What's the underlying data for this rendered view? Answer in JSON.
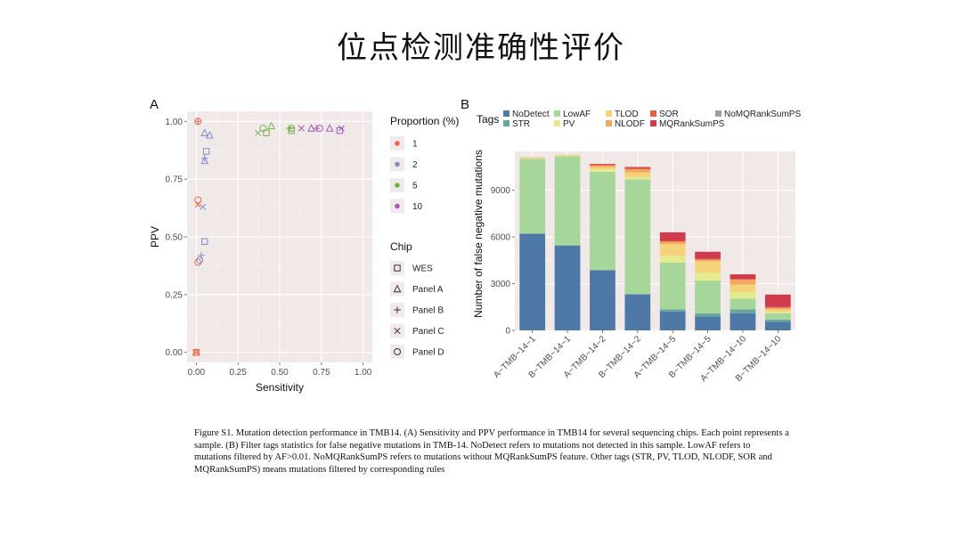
{
  "slide": {
    "title": "位点检测准确性评价",
    "caption": "Figure S1. Mutation detection performance in TMB14. (A) Sensitivity and PPV performance in TMB14 for several sequencing chips. Each point represents a sample. (B) Filter tags statistics for false negative mutations in TMB-14. NoDetect refers to mutations not detected in this sample. LowAF refers to mutations filtered by AF>0.01. NoMQRankSumPS refers to mutations without MQRankSumPS feature. Other tags (STR, PV, TLOD, NLODF, SOR and MQRankSumPS) means mutations filtered by corresponding rules"
  },
  "chart_data": [
    {
      "panel": "A",
      "type": "scatter",
      "xlabel": "Sensitivity",
      "ylabel": "PPV",
      "xlim": [
        0,
        1
      ],
      "ylim": [
        0,
        1
      ],
      "xticks": [
        "0.00",
        "0.25",
        "0.50",
        "0.75",
        "1.00"
      ],
      "yticks": [
        "0.00",
        "0.25",
        "0.50",
        "0.75",
        "1.00"
      ],
      "grid": true,
      "legend_position": "right",
      "color_legend": {
        "title": "Proportion (%)",
        "entries": [
          {
            "label": "1",
            "color": "#e8694a"
          },
          {
            "label": "2",
            "color": "#7f8fc9"
          },
          {
            "label": "5",
            "color": "#73b34a"
          },
          {
            "label": "10",
            "color": "#a05bb3"
          }
        ]
      },
      "shape_legend": {
        "title": "Chip",
        "entries": [
          {
            "label": "WES",
            "shape": "square"
          },
          {
            "label": "Panel A",
            "shape": "triangle"
          },
          {
            "label": "Panel B",
            "shape": "plus"
          },
          {
            "label": "Panel C",
            "shape": "cross"
          },
          {
            "label": "Panel D",
            "shape": "circle"
          }
        ]
      },
      "points": [
        {
          "x": 0.01,
          "y": 1.0,
          "proportion": "1",
          "chip": "Panel D"
        },
        {
          "x": 0.01,
          "y": 1.0,
          "proportion": "1",
          "chip": "Panel B"
        },
        {
          "x": 0.0,
          "y": 0.0,
          "proportion": "1",
          "chip": "WES"
        },
        {
          "x": 0.0,
          "y": 0.0,
          "proportion": "1",
          "chip": "Panel A"
        },
        {
          "x": 0.0,
          "y": 0.0,
          "proportion": "1",
          "chip": "Panel C"
        },
        {
          "x": 0.01,
          "y": 0.66,
          "proportion": "1",
          "chip": "Panel D"
        },
        {
          "x": 0.01,
          "y": 0.64,
          "proportion": "1",
          "chip": "Panel C"
        },
        {
          "x": 0.01,
          "y": 0.39,
          "proportion": "1",
          "chip": "Panel D"
        },
        {
          "x": 0.05,
          "y": 0.95,
          "proportion": "2",
          "chip": "Panel A"
        },
        {
          "x": 0.08,
          "y": 0.94,
          "proportion": "2",
          "chip": "Panel A"
        },
        {
          "x": 0.06,
          "y": 0.87,
          "proportion": "2",
          "chip": "WES"
        },
        {
          "x": 0.05,
          "y": 0.84,
          "proportion": "2",
          "chip": "Panel B"
        },
        {
          "x": 0.05,
          "y": 0.83,
          "proportion": "2",
          "chip": "Panel A"
        },
        {
          "x": 0.04,
          "y": 0.63,
          "proportion": "2",
          "chip": "Panel C"
        },
        {
          "x": 0.05,
          "y": 0.48,
          "proportion": "2",
          "chip": "WES"
        },
        {
          "x": 0.03,
          "y": 0.42,
          "proportion": "2",
          "chip": "Panel B"
        },
        {
          "x": 0.02,
          "y": 0.4,
          "proportion": "2",
          "chip": "Panel D"
        },
        {
          "x": 0.37,
          "y": 0.95,
          "proportion": "5",
          "chip": "Panel C"
        },
        {
          "x": 0.4,
          "y": 0.97,
          "proportion": "5",
          "chip": "Panel D"
        },
        {
          "x": 0.42,
          "y": 0.95,
          "proportion": "5",
          "chip": "WES"
        },
        {
          "x": 0.45,
          "y": 0.98,
          "proportion": "5",
          "chip": "Panel A"
        },
        {
          "x": 0.56,
          "y": 0.97,
          "proportion": "5",
          "chip": "Panel B"
        },
        {
          "x": 0.57,
          "y": 0.97,
          "proportion": "5",
          "chip": "Panel D"
        },
        {
          "x": 0.57,
          "y": 0.96,
          "proportion": "5",
          "chip": "WES"
        },
        {
          "x": 0.63,
          "y": 0.97,
          "proportion": "10",
          "chip": "Panel C"
        },
        {
          "x": 0.69,
          "y": 0.97,
          "proportion": "10",
          "chip": "Panel A"
        },
        {
          "x": 0.72,
          "y": 0.97,
          "proportion": "10",
          "chip": "Panel B"
        },
        {
          "x": 0.74,
          "y": 0.97,
          "proportion": "10",
          "chip": "Panel D"
        },
        {
          "x": 0.8,
          "y": 0.97,
          "proportion": "10",
          "chip": "Panel A"
        },
        {
          "x": 0.86,
          "y": 0.96,
          "proportion": "10",
          "chip": "WES"
        },
        {
          "x": 0.87,
          "y": 0.97,
          "proportion": "10",
          "chip": "Panel C"
        }
      ]
    },
    {
      "panel": "B",
      "type": "bar",
      "stacked": true,
      "ylabel": "Number of false negative mutations",
      "xlabel": "",
      "ylim": [
        0,
        11500
      ],
      "yticks": [
        0,
        3000,
        6000,
        9000
      ],
      "grid": true,
      "legend_title": "Tags",
      "legend_position": "top",
      "categories": [
        "A−TMB−14−1",
        "B−TMB−14−1",
        "A−TMB−14−2",
        "B−TMB−14−2",
        "A−TMB−14−5",
        "B−TMB−14−5",
        "A−TMB−14−10",
        "B−TMB−14−10"
      ],
      "series": [
        {
          "name": "NoDetect",
          "color": "#4e79a7",
          "values": [
            6200,
            5450,
            3850,
            2300,
            1200,
            900,
            1100,
            550
          ]
        },
        {
          "name": "STR",
          "color": "#6aa6a0",
          "values": [
            30,
            30,
            40,
            50,
            150,
            200,
            250,
            150
          ]
        },
        {
          "name": "LowAF",
          "color": "#a6d69a",
          "values": [
            4800,
            5700,
            6300,
            7350,
            3000,
            2100,
            700,
            400
          ]
        },
        {
          "name": "PV",
          "color": "#e4ea8e",
          "values": [
            50,
            50,
            150,
            150,
            450,
            500,
            400,
            100
          ]
        },
        {
          "name": "TLOD",
          "color": "#f5d37a",
          "values": [
            30,
            30,
            150,
            300,
            750,
            750,
            500,
            150
          ]
        },
        {
          "name": "NLODF",
          "color": "#f2a95f",
          "values": [
            20,
            20,
            100,
            200,
            150,
            100,
            300,
            100
          ]
        },
        {
          "name": "SOR",
          "color": "#e5623e",
          "values": [
            0,
            0,
            50,
            80,
            50,
            50,
            50,
            50
          ]
        },
        {
          "name": "MQRankSumPS",
          "color": "#cf3a4c",
          "values": [
            0,
            0,
            50,
            70,
            550,
            450,
            300,
            800
          ]
        },
        {
          "name": "NoMQRankSumPS",
          "color": "#9e9e9e",
          "values": [
            0,
            0,
            0,
            0,
            0,
            0,
            0,
            0
          ]
        }
      ]
    }
  ]
}
